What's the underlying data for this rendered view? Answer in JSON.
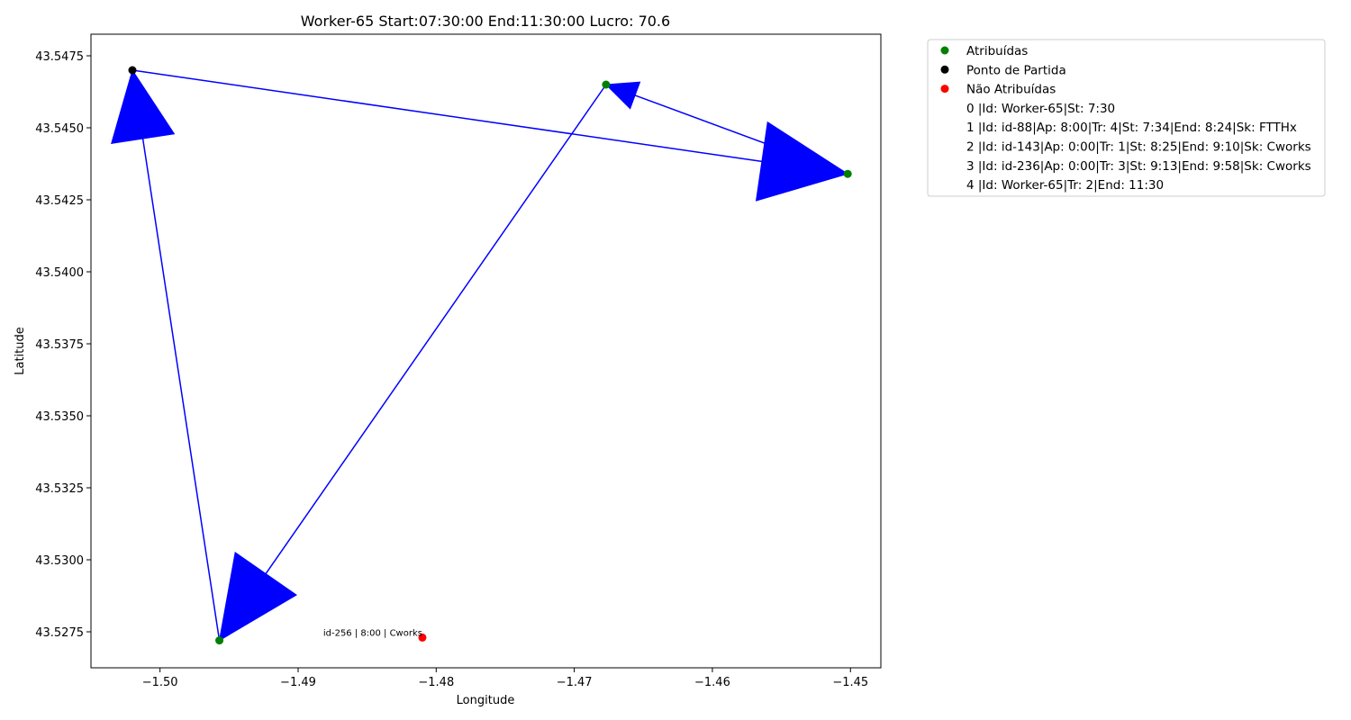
{
  "chart_data": {
    "type": "scatter",
    "title": "Worker-65 Start:07:30:00 End:11:30:00 Lucro: 70.6",
    "xlabel": "Longitude",
    "ylabel": "Latitude",
    "xlim": [
      -1.505,
      -1.4478
    ],
    "ylim": [
      43.52625,
      43.54825
    ],
    "x_ticks": [
      -1.5,
      -1.49,
      -1.48,
      -1.47,
      -1.46,
      -1.45
    ],
    "x_tick_labels": [
      "−1.50",
      "−1.49",
      "−1.48",
      "−1.47",
      "−1.46",
      "−1.45"
    ],
    "y_ticks": [
      43.5275,
      43.53,
      43.5325,
      43.535,
      43.5375,
      43.54,
      43.5425,
      43.545,
      43.5475
    ],
    "y_tick_labels": [
      "43.5275",
      "43.5300",
      "43.5325",
      "43.5350",
      "43.5375",
      "43.5400",
      "43.5425",
      "43.5450",
      "43.5475"
    ],
    "grid": false,
    "legend_placement": "outside-top-right",
    "colors": {
      "assigned": "#008000",
      "start": "#000000",
      "unassigned": "#ff0000",
      "route": "#0000ff"
    },
    "series": [
      {
        "name": "Atribuídas",
        "color": "#008000",
        "points": [
          {
            "x": -1.4677,
            "y": 43.5465
          },
          {
            "x": -1.4502,
            "y": 43.5434
          },
          {
            "x": -1.4957,
            "y": 43.5272
          }
        ]
      },
      {
        "name": "Ponto de Partida",
        "color": "#000000",
        "points": [
          {
            "x": -1.502,
            "y": 43.547
          }
        ]
      },
      {
        "name": "Não Atribuídas",
        "color": "#ff0000",
        "points": [
          {
            "x": -1.481,
            "y": 43.5273
          }
        ]
      }
    ],
    "route": [
      {
        "x": -1.502,
        "y": 43.547
      },
      {
        "x": -1.4502,
        "y": 43.5434
      },
      {
        "x": -1.4677,
        "y": 43.5465
      },
      {
        "x": -1.4957,
        "y": 43.5272
      },
      {
        "x": -1.502,
        "y": 43.547
      }
    ],
    "legend_entries": [
      "Atribuídas",
      "Ponto de Partida",
      "Não Atribuídas",
      "0 |Id: Worker-65|St: 7:30",
      "1 |Id: id-88|Ap: 8:00|Tr: 4|St: 7:34|End: 8:24|Sk: FTTHx",
      "2 |Id: id-143|Ap: 0:00|Tr: 1|St: 8:25|End: 9:10|Sk: Cworks",
      "3 |Id: id-236|Ap: 0:00|Tr: 3|St: 9:13|End: 9:58|Sk: Cworks",
      "4 |Id: Worker-65|Tr: 2|End: 11:30"
    ],
    "annotations": [
      {
        "text": "id-256 | 8:00 | Cworks",
        "x": -1.481,
        "y": 43.5273
      }
    ]
  }
}
